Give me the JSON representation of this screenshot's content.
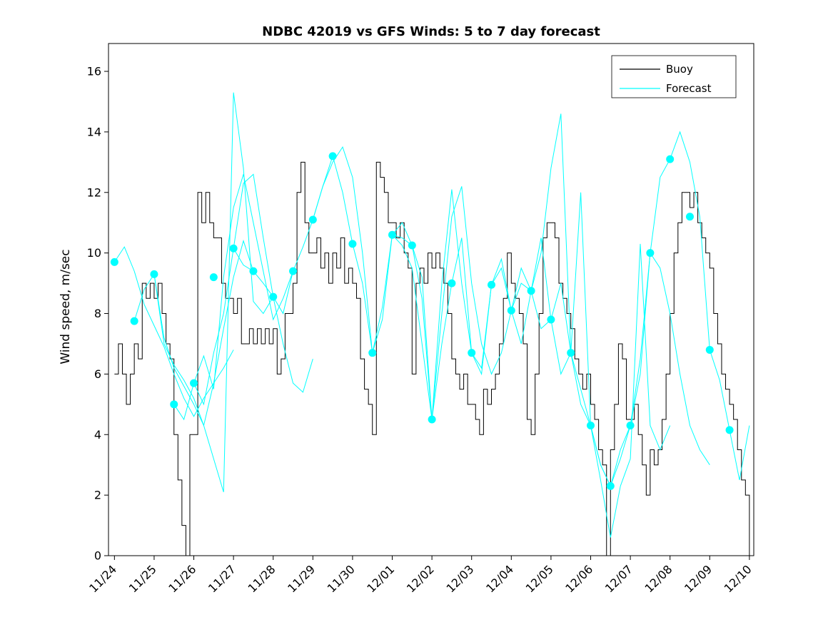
{
  "chart_data": {
    "type": "line",
    "title": "NDBC 42019 vs GFS Winds: 5 to 7 day forecast",
    "xlabel": "",
    "ylabel": "Wind speed, m/sec",
    "grid": false,
    "x_tick_labels": [
      "11/24",
      "11/25",
      "11/26",
      "11/27",
      "11/28",
      "11/29",
      "11/30",
      "12/01",
      "12/02",
      "12/03",
      "12/04",
      "12/05",
      "12/06",
      "12/07",
      "12/08",
      "12/09",
      "12/10"
    ],
    "x_tick_rotation_deg": 45,
    "y_ticks": [
      0,
      2,
      4,
      6,
      8,
      10,
      12,
      14,
      16
    ],
    "xlim_days": [
      -0.15,
      16.11
    ],
    "ylim": [
      0,
      16.92
    ],
    "legend": {
      "position": "top-right",
      "entries": [
        {
          "label": "Buoy",
          "color": "#000000"
        },
        {
          "label": "Forecast",
          "color": "#00ffff"
        }
      ]
    },
    "series": [
      {
        "name": "Buoy",
        "type": "step",
        "color": "#000000",
        "x0": 0,
        "dx": 0.1,
        "values": [
          6,
          7,
          6,
          5,
          6,
          7,
          6.5,
          9,
          8.5,
          9,
          8.5,
          9,
          8,
          7,
          6.5,
          4,
          2.5,
          1,
          0,
          4,
          4,
          12,
          11,
          12,
          11,
          10.5,
          10.5,
          9,
          8.5,
          8.5,
          8,
          8.5,
          7,
          7,
          7.5,
          7,
          7.5,
          7,
          7.5,
          7,
          7.5,
          6,
          6.5,
          8,
          8,
          9,
          12,
          13,
          11,
          10,
          10,
          10.5,
          9.5,
          10,
          9,
          10,
          9.5,
          10.5,
          9,
          9.5,
          9,
          8.5,
          6.5,
          5.5,
          5,
          4,
          13,
          12.5,
          12,
          11,
          11,
          10.5,
          11,
          10,
          9.5,
          6,
          9,
          9.5,
          9,
          10,
          9.5,
          10,
          9.5,
          9,
          8,
          6.5,
          6,
          5.5,
          6,
          5,
          5,
          4.5,
          4,
          5.5,
          5,
          5.5,
          6,
          7,
          8.5,
          10,
          9,
          8.5,
          8,
          7,
          4.5,
          4,
          6,
          8,
          10.5,
          11,
          11,
          10.5,
          9,
          8.5,
          8,
          7.5,
          6.5,
          6,
          5.5,
          6,
          5,
          4.5,
          3.5,
          3,
          0,
          3.5,
          5,
          7,
          6.5,
          4.5,
          4.5,
          5,
          4,
          3,
          2,
          3.5,
          3,
          3.5,
          4.5,
          6,
          8,
          10,
          11,
          12,
          12,
          11.5,
          12,
          11,
          10.5,
          10,
          9.5,
          8,
          7,
          6,
          5.5,
          5,
          4.5,
          3.5,
          2.5,
          2,
          0
        ]
      },
      {
        "name": "Forecast",
        "type": "line-segments",
        "color": "#00ffff",
        "segments": [
          {
            "x0": 0.0,
            "dx": 0.25,
            "values": [
              9.7,
              10.2,
              9.4,
              8.3,
              7.6,
              6.9,
              6.0,
              5.2,
              4.6,
              5.2,
              5.7,
              6.2,
              6.8
            ]
          },
          {
            "x0": 0.5,
            "dx": 0.25,
            "values": [
              7.75,
              8.8,
              9.3,
              7.2,
              6.2,
              5.6,
              5.0,
              4.3,
              5.7,
              7.5,
              9.2,
              10.4,
              9.4
            ]
          },
          {
            "x0": 1.0,
            "dx": 0.25,
            "values": [
              9.3,
              7.0,
              6.3,
              5.8,
              5.2,
              4.3,
              3.2,
              2.1,
              15.3,
              12.8,
              8.4,
              8.0,
              8.55
            ]
          },
          {
            "x0": 1.5,
            "dx": 0.25,
            "values": [
              5.0,
              4.5,
              5.7,
              6.6,
              5.5,
              9.2,
              11.5,
              12.6,
              11.0,
              9.4,
              7.8,
              8.5,
              9.4
            ]
          },
          {
            "x0": 2.0,
            "dx": 0.25,
            "values": [
              5.7,
              5.0,
              6.7,
              8.0,
              10.15,
              12.3,
              12.6,
              10.5,
              8.55,
              7.0,
              5.7,
              5.4,
              6.5
            ]
          },
          {
            "x0": 3.0,
            "dx": 0.25,
            "values": [
              10.15,
              9.6,
              9.4,
              9.0,
              8.55,
              8.0,
              9.4,
              10.2,
              11.1,
              12.2,
              13.2,
              12.0,
              10.3
            ]
          },
          {
            "x0": 5.0,
            "dx": 0.25,
            "values": [
              11.1,
              12.2,
              13.0,
              13.5,
              12.5,
              10.0,
              6.7,
              7.8,
              10.6,
              10.5,
              10.25,
              9.2,
              4.5
            ]
          },
          {
            "x0": 6.0,
            "dx": 0.25,
            "values": [
              10.3,
              9.0,
              6.7,
              8.2,
              10.6,
              11.0,
              10.25,
              8.5,
              4.5,
              9.0,
              12.1,
              9.0,
              6.7
            ]
          },
          {
            "x0": 7.0,
            "dx": 0.25,
            "values": [
              10.6,
              10.25,
              9.5,
              7.0,
              4.5,
              8.0,
              11.2,
              12.2,
              9.0,
              7.0,
              6.0,
              6.7,
              8.1
            ]
          },
          {
            "x0": 8.0,
            "dx": 0.25,
            "values": [
              4.5,
              7.0,
              9.0,
              10.5,
              6.7,
              6.0,
              8.95,
              9.5,
              8.1,
              9.0,
              8.75,
              7.5,
              7.8
            ]
          },
          {
            "x0": 9.0,
            "dx": 0.25,
            "values": [
              6.7,
              6.2,
              8.95,
              9.8,
              8.1,
              7.0,
              8.75,
              10.5,
              7.8,
              6.0,
              6.7,
              5.5,
              4.3
            ]
          },
          {
            "x0": 10.0,
            "dx": 0.25,
            "values": [
              8.1,
              9.5,
              8.75,
              10.0,
              12.8,
              14.6,
              6.7,
              5.0,
              4.3,
              3.0,
              2.3,
              3.5,
              4.3
            ]
          },
          {
            "x0": 11.0,
            "dx": 0.25,
            "values": [
              7.8,
              9.0,
              6.7,
              12.0,
              4.3,
              2.5,
              0.6,
              2.3,
              3.2,
              10.3,
              4.3,
              3.5,
              4.3
            ]
          },
          {
            "x0": 12.0,
            "dx": 0.25,
            "values": [
              4.3,
              3.0,
              2.3,
              3.2,
              4.3,
              6.5,
              10.0,
              9.5,
              8.0,
              6.0,
              4.3,
              3.5,
              3.0
            ]
          },
          {
            "x0": 13.0,
            "dx": 0.25,
            "values": [
              4.3,
              6.0,
              10.0,
              12.5,
              13.1,
              14.0,
              13.0,
              11.2,
              6.8,
              5.8,
              4.15,
              2.5,
              4.3
            ]
          }
        ]
      },
      {
        "name": "Forecast markers",
        "type": "scatter",
        "color": "#00ffff",
        "marker_radius": 5.5,
        "x0": 0,
        "dx": 0.5,
        "values": [
          9.7,
          7.75,
          9.3,
          5.0,
          5.7,
          9.2,
          10.15,
          9.4,
          8.55,
          9.4,
          11.1,
          13.2,
          10.3,
          6.7,
          10.6,
          10.25,
          4.5,
          9.0,
          6.7,
          8.95,
          8.1,
          8.75,
          7.8,
          6.7,
          4.3,
          2.3,
          4.3,
          10.0,
          13.1,
          11.2,
          6.8,
          4.15
        ]
      }
    ]
  }
}
